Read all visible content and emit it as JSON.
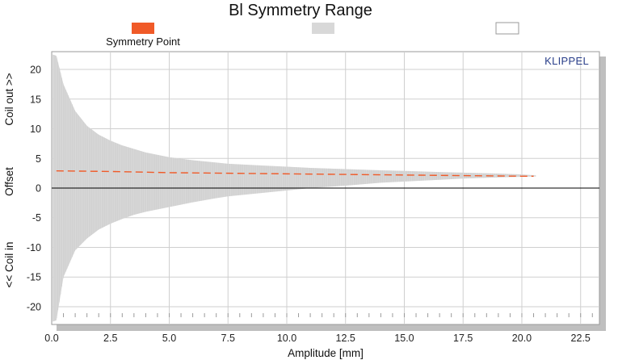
{
  "chart_data": {
    "type": "area",
    "title": "Bl Symmetry Range",
    "xlabel": "Amplitude [mm]",
    "ylabel_parts": {
      "top": "Coil out >>",
      "middle": "Offset",
      "bottom": "<< Coil in"
    },
    "brand": "KLIPPEL",
    "xlim": [
      0,
      23.3
    ],
    "ylim": [
      -23,
      23
    ],
    "x_ticks": [
      0,
      2.5,
      5,
      7.5,
      10,
      12.5,
      15,
      17.5,
      20,
      22.5
    ],
    "x_tick_labels": [
      "0.0",
      "2.5",
      "5.0",
      "7.5",
      "10.0",
      "12.5",
      "15.0",
      "17.5",
      "20.0",
      "22.5"
    ],
    "y_ticks": [
      -20,
      -15,
      -10,
      -5,
      0,
      5,
      10,
      15,
      20
    ],
    "y_tick_labels": [
      "-20",
      "-15",
      "-10",
      "-5",
      "0",
      "5",
      "10",
      "15",
      "20"
    ],
    "grid": true,
    "legend_placement": "top",
    "legend": [
      {
        "name": "Symmetry Point",
        "color": "#f05a28"
      },
      {
        "name": "",
        "color": "#d8d8d8"
      },
      {
        "name": "",
        "color": "#ffffff"
      }
    ],
    "colors": {
      "symmetry_point": "#f05a28",
      "range_fill": "#d8d8d8",
      "range_stripe": "#c8c8c8",
      "zero_line": "#000000",
      "grid": "#cfcfcf",
      "brand": "#2a3f8a"
    },
    "series": [
      {
        "name": "Symmetry Point",
        "x": [
          0.2,
          2.5,
          5,
          7.5,
          10,
          12.5,
          15,
          17.5,
          20,
          20.5
        ],
        "values": [
          2.9,
          2.8,
          2.6,
          2.5,
          2.4,
          2.3,
          2.2,
          2.1,
          2.0,
          2.0
        ]
      },
      {
        "name": "",
        "x": [
          0.05,
          0.2,
          0.5,
          1.0,
          1.5,
          2.0,
          2.5,
          3.0,
          3.5,
          4.0,
          5.0,
          6.0,
          7.0,
          7.5,
          9.0,
          10.0,
          11.0,
          12.5,
          14.0,
          15.0,
          16.5,
          17.5,
          19.0,
          20.0,
          20.6
        ],
        "upper": [
          22.5,
          22.3,
          17.5,
          13.0,
          10.5,
          9.0,
          8.0,
          7.2,
          6.6,
          6.0,
          5.2,
          4.7,
          4.3,
          4.1,
          3.8,
          3.6,
          3.4,
          3.2,
          3.0,
          2.9,
          2.7,
          2.6,
          2.45,
          2.3,
          2.15
        ],
        "lower": [
          -22.5,
          -22.3,
          -15.0,
          -10.5,
          -8.5,
          -7.0,
          -6.0,
          -5.2,
          -4.5,
          -4.0,
          -3.2,
          -2.4,
          -1.7,
          -1.4,
          -0.8,
          -0.4,
          0.0,
          0.4,
          0.9,
          1.1,
          1.4,
          1.6,
          1.8,
          1.9,
          1.95
        ]
      }
    ]
  }
}
